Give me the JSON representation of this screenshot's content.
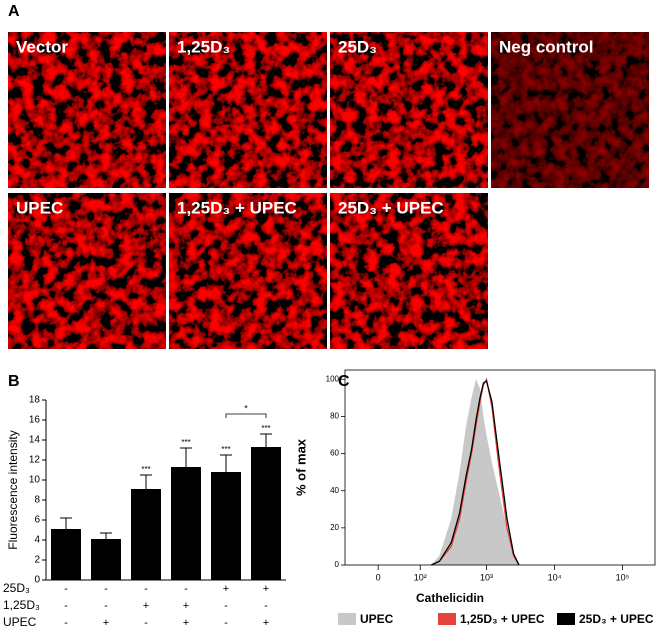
{
  "panel_labels": [
    "A",
    "B",
    "C"
  ],
  "micrographs": [
    "Vector",
    "1,25D₃",
    "25D₃",
    "Neg control",
    "UPEC",
    "1,25D₃ + UPEC",
    "25D₃ + UPEC"
  ],
  "chart_data": [
    {
      "type": "bar",
      "ylabel": "Fluorescence intensity",
      "values": [
        5.1,
        4.1,
        9.1,
        11.3,
        10.8,
        13.3
      ],
      "errors": [
        1.1,
        0.6,
        1.4,
        1.9,
        1.7,
        1.3
      ],
      "annotations": [
        null,
        null,
        "***",
        "***",
        "***",
        "***"
      ],
      "bracket_label": "*",
      "color": "#000000",
      "ylim": [
        0,
        18
      ],
      "yticks": [
        0,
        2,
        4,
        6,
        8,
        10,
        12,
        14,
        16,
        18
      ],
      "treatments": [
        {
          "name": "25D₃",
          "signs": [
            "-",
            "-",
            "-",
            "-",
            "+",
            "+"
          ]
        },
        {
          "name": "1,25D₃",
          "signs": [
            "-",
            "-",
            "+",
            "+",
            "-",
            "-"
          ]
        },
        {
          "name": "UPEC",
          "signs": [
            "-",
            "+",
            "-",
            "+",
            "-",
            "+"
          ]
        }
      ]
    },
    {
      "type": "line",
      "xlabel": "Cathelicidin",
      "ylabel": "% of max",
      "xscale": "asinh",
      "x": [
        150,
        200,
        300,
        400,
        500,
        600,
        700,
        800,
        900,
        1000,
        1200,
        1500,
        2000,
        2500,
        3000
      ],
      "series": [
        {
          "name": "UPEC",
          "color": "#c8c8c8",
          "fill": true,
          "values": [
            0,
            5,
            25,
            50,
            75,
            90,
            100,
            95,
            80,
            70,
            55,
            40,
            20,
            5,
            0
          ]
        },
        {
          "name": "1,25D₃ + UPEC",
          "color": "#e8403a",
          "fill": false,
          "values": [
            0,
            2,
            10,
            25,
            45,
            60,
            75,
            88,
            97,
            100,
            85,
            55,
            20,
            5,
            0
          ]
        },
        {
          "name": "25D₃ + UPEC",
          "color": "#000000",
          "fill": false,
          "values": [
            0,
            2,
            12,
            28,
            48,
            62,
            78,
            90,
            98,
            99,
            88,
            60,
            25,
            6,
            0
          ]
        }
      ],
      "xlim": [
        -70,
        300000
      ],
      "xticks": [
        0,
        {
          "value": 100,
          "label": "10²"
        },
        {
          "value": 1000,
          "label": "10³"
        },
        {
          "value": 10000,
          "label": "10⁴"
        },
        {
          "value": 100000,
          "label": "10⁵"
        }
      ],
      "ylim": [
        0,
        105
      ],
      "yticks": [
        0,
        20,
        40,
        60,
        80,
        100
      ]
    }
  ]
}
